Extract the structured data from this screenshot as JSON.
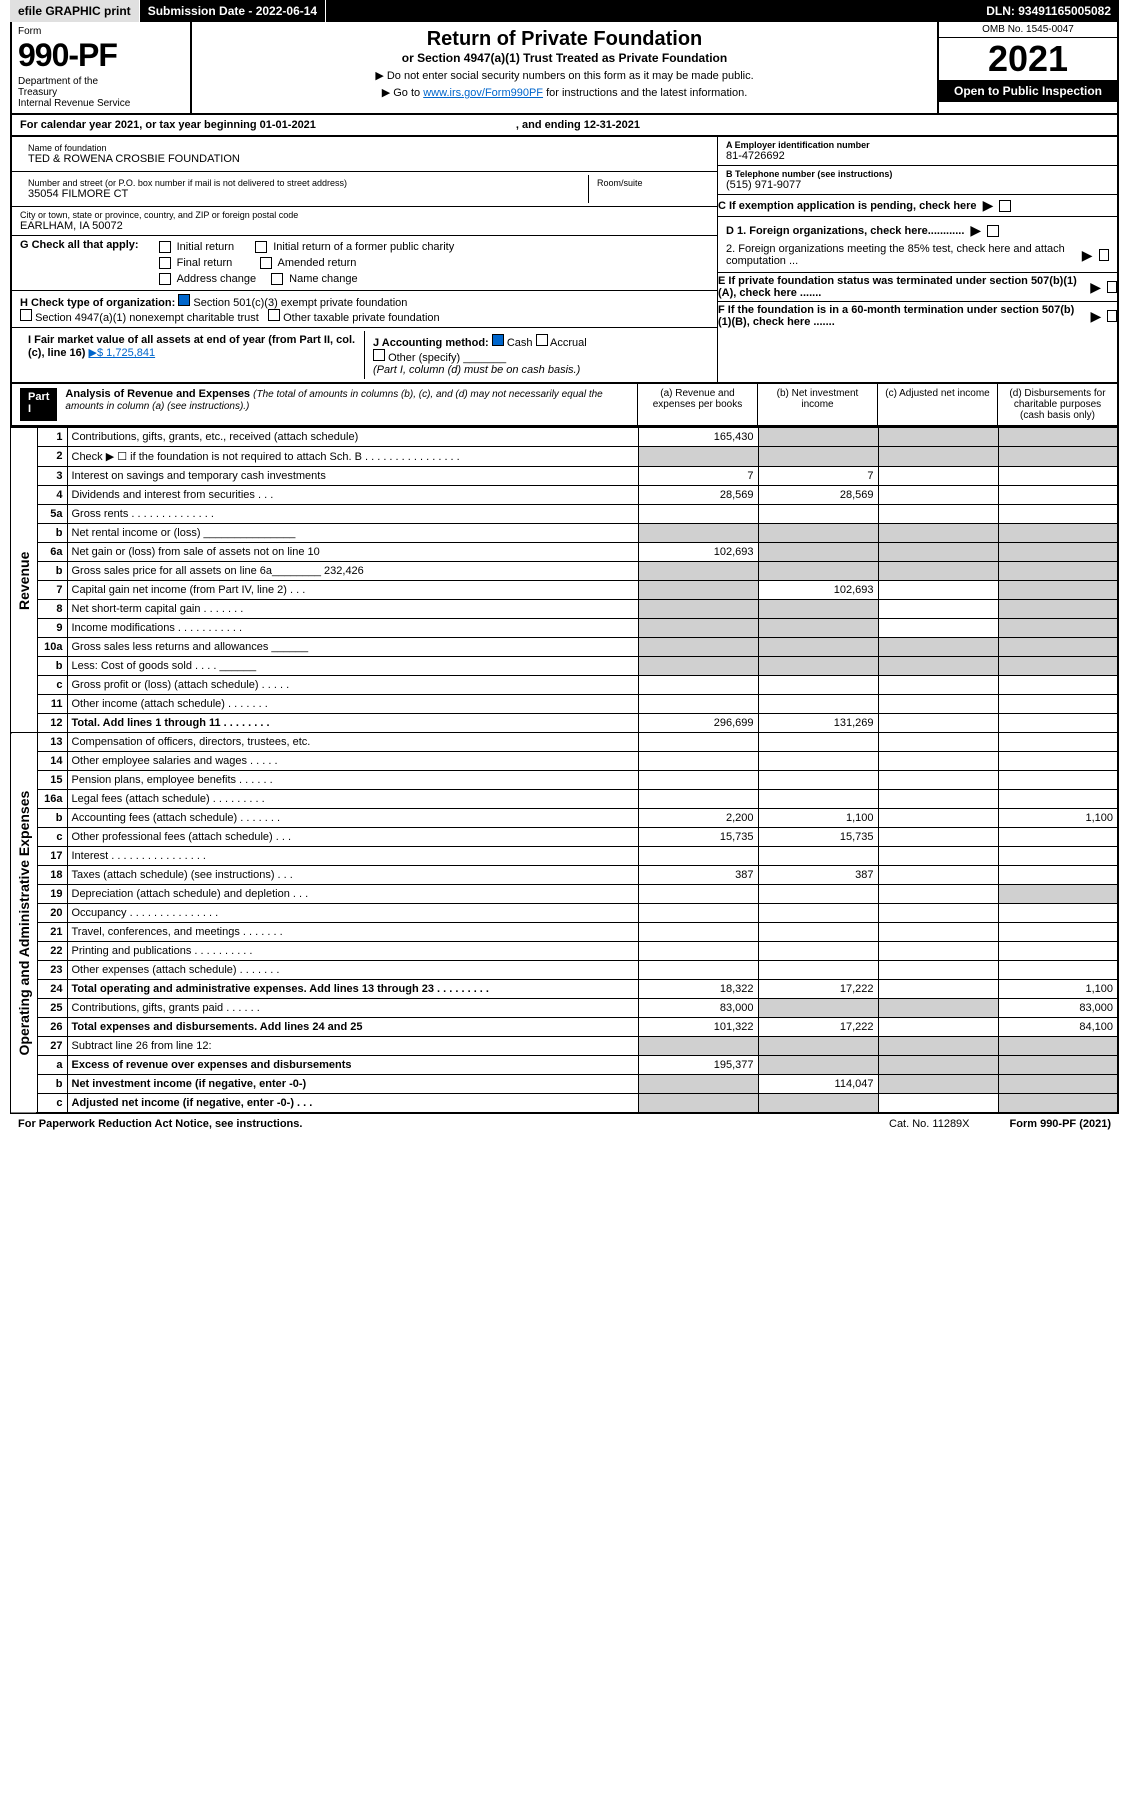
{
  "topbar": {
    "efile": "efile GRAPHIC print",
    "subdate_label": "Submission Date - 2022-06-14",
    "dln": "DLN: 93491165005082"
  },
  "header": {
    "form_label": "Form",
    "form_no": "990-PF",
    "dept": "Department of the Treasury\nInternal Revenue Service",
    "title": "Return of Private Foundation",
    "subtitle": "or Section 4947(a)(1) Trust Treated as Private Foundation",
    "note1": "▶ Do not enter social security numbers on this form as it may be made public.",
    "note2_pre": "▶ Go to ",
    "note2_link": "www.irs.gov/Form990PF",
    "note2_post": " for instructions and the latest information.",
    "omb": "OMB No. 1545-0047",
    "year": "2021",
    "open": "Open to Public Inspection"
  },
  "calendar": {
    "begin": "For calendar year 2021, or tax year beginning 01-01-2021",
    "end": ", and ending 12-31-2021"
  },
  "info": {
    "name_lbl": "Name of foundation",
    "name": "TED & ROWENA CROSBIE FOUNDATION",
    "addr_lbl": "Number and street (or P.O. box number if mail is not delivered to street address)",
    "addr": "35054 FILMORE CT",
    "room_lbl": "Room/suite",
    "city_lbl": "City or town, state or province, country, and ZIP or foreign postal code",
    "city": "EARLHAM, IA  50072",
    "ein_lbl": "A Employer identification number",
    "ein": "81-4726692",
    "phone_lbl": "B Telephone number (see instructions)",
    "phone": "(515) 971-9077",
    "c_lbl": "C If exemption application is pending, check here",
    "g_lbl": "G Check all that apply:",
    "g_opts": [
      "Initial return",
      "Initial return of a former public charity",
      "Final return",
      "Amended return",
      "Address change",
      "Name change"
    ],
    "d1": "D 1. Foreign organizations, check here............",
    "d2": "2. Foreign organizations meeting the 85% test, check here and attach computation ...",
    "h_lbl": "H Check type of organization:",
    "h1": "Section 501(c)(3) exempt private foundation",
    "h2": "Section 4947(a)(1) nonexempt charitable trust",
    "h3": "Other taxable private foundation",
    "e_lbl": "E If private foundation status was terminated under section 507(b)(1)(A), check here .......",
    "i_lbl": "I Fair market value of all assets at end of year (from Part II, col. (c), line 16)",
    "i_val": "▶$  1,725,841",
    "j_lbl": "J Accounting method:",
    "j1": "Cash",
    "j2": "Accrual",
    "j3": "Other (specify)",
    "j_note": "(Part I, column (d) must be on cash basis.)",
    "f_lbl": "F If the foundation is in a 60-month termination under section 507(b)(1)(B), check here ......."
  },
  "part1": {
    "label": "Part I",
    "title": "Analysis of Revenue and Expenses",
    "note": "(The total of amounts in columns (b), (c), and (d) may not necessarily equal the amounts in column (a) (see instructions).)",
    "col_a": "(a)    Revenue and expenses per books",
    "col_b": "(b)    Net investment income",
    "col_c": "(c)   Adjusted net income",
    "col_d": "(d)   Disbursements for charitable purposes (cash basis only)"
  },
  "vlabels": {
    "revenue": "Revenue",
    "expenses": "Operating and Administrative Expenses"
  },
  "rows": [
    {
      "n": "1",
      "d": "Contributions, gifts, grants, etc., received (attach schedule)",
      "a": "165,430"
    },
    {
      "n": "2",
      "d": "Check ▶ ☐ if the foundation is not required to attach Sch. B  .  .  .  .  .  .  .  .  .  .  .  .  .  .  .  ."
    },
    {
      "n": "3",
      "d": "Interest on savings and temporary cash investments",
      "a": "7",
      "b": "7"
    },
    {
      "n": "4",
      "d": "Dividends and interest from securities   .   .   .",
      "a": "28,569",
      "b": "28,569"
    },
    {
      "n": "5a",
      "d": "Gross rents  .  .  .  .  .  .  .  .  .  .  .  .  .  ."
    },
    {
      "n": "b",
      "d": "Net rental income or (loss)  _______________"
    },
    {
      "n": "6a",
      "d": "Net gain or (loss) from sale of assets not on line 10",
      "a": "102,693"
    },
    {
      "n": "b",
      "d": "Gross sales price for all assets on line 6a________  232,426"
    },
    {
      "n": "7",
      "d": "Capital gain net income (from Part IV, line 2)   .   .   .",
      "b": "102,693"
    },
    {
      "n": "8",
      "d": "Net short-term capital gain   .   .   .   .   .   .   ."
    },
    {
      "n": "9",
      "d": "Income modifications  .  .  .  .  .  .  .  .  .  .  ."
    },
    {
      "n": "10a",
      "d": "Gross sales less returns and allowances  ______"
    },
    {
      "n": "b",
      "d": "Less: Cost of goods sold   .   .   .   .   ______"
    },
    {
      "n": "c",
      "d": "Gross profit or (loss) (attach schedule)   .   .   .   .   ."
    },
    {
      "n": "11",
      "d": "Other income (attach schedule)   .   .   .   .   .   .   ."
    },
    {
      "n": "12",
      "d": "Total. Add lines 1 through 11   .   .   .   .   .   .   .   .",
      "a": "296,699",
      "b": "131,269",
      "bold": true
    },
    {
      "n": "13",
      "d": "Compensation of officers, directors, trustees, etc."
    },
    {
      "n": "14",
      "d": "Other employee salaries and wages   .   .   .   .   ."
    },
    {
      "n": "15",
      "d": "Pension plans, employee benefits   .   .   .   .   .   ."
    },
    {
      "n": "16a",
      "d": "Legal fees (attach schedule)  .  .  .  .  .  .  .  .  ."
    },
    {
      "n": "b",
      "d": "Accounting fees (attach schedule)  .  .  .  .  .  .  .",
      "a": "2,200",
      "b": "1,100",
      "dd": "1,100"
    },
    {
      "n": "c",
      "d": "Other professional fees (attach schedule)   .   .   .",
      "a": "15,735",
      "b": "15,735"
    },
    {
      "n": "17",
      "d": "Interest  .  .  .  .  .  .  .  .  .  .  .  .  .  .  .  ."
    },
    {
      "n": "18",
      "d": "Taxes (attach schedule) (see instructions)   .   .   .",
      "a": "387",
      "b": "387"
    },
    {
      "n": "19",
      "d": "Depreciation (attach schedule) and depletion   .   .   ."
    },
    {
      "n": "20",
      "d": "Occupancy  .  .  .  .  .  .  .  .  .  .  .  .  .  .  ."
    },
    {
      "n": "21",
      "d": "Travel, conferences, and meetings  .  .  .  .  .  .  ."
    },
    {
      "n": "22",
      "d": "Printing and publications  .  .  .  .  .  .  .  .  .  ."
    },
    {
      "n": "23",
      "d": "Other expenses (attach schedule)  .  .  .  .  .  .  ."
    },
    {
      "n": "24",
      "d": "Total operating and administrative expenses. Add lines 13 through 23   .   .   .   .   .   .   .   .   .",
      "a": "18,322",
      "b": "17,222",
      "dd": "1,100",
      "bold": true
    },
    {
      "n": "25",
      "d": "Contributions, gifts, grants paid   .   .   .   .   .   .",
      "a": "83,000",
      "dd": "83,000"
    },
    {
      "n": "26",
      "d": "Total expenses and disbursements. Add lines 24 and 25",
      "a": "101,322",
      "b": "17,222",
      "dd": "84,100",
      "bold": true
    },
    {
      "n": "27",
      "d": "Subtract line 26 from line 12:"
    },
    {
      "n": "a",
      "d": "Excess of revenue over expenses and disbursements",
      "a": "195,377",
      "bold": true
    },
    {
      "n": "b",
      "d": "Net investment income (if negative, enter -0-)",
      "b": "114,047",
      "bold": true
    },
    {
      "n": "c",
      "d": "Adjusted net income (if negative, enter -0-)   .   .   .",
      "bold": true
    }
  ],
  "footer": {
    "pra": "For Paperwork Reduction Act Notice, see instructions.",
    "cat": "Cat. No. 11289X",
    "form": "Form 990-PF (2021)"
  },
  "shading": {
    "row1": {
      "b": true,
      "c": true,
      "d": true
    },
    "row2": {
      "a": true,
      "b": true,
      "c": true,
      "d": true
    },
    "row5b": {
      "a": true,
      "b": true,
      "c": true,
      "d": true
    },
    "row6a": {
      "b": true,
      "c": true,
      "d": true
    },
    "row6b": {
      "a": true,
      "b": true,
      "c": true,
      "d": true
    },
    "row7": {
      "a": true,
      "d": true
    },
    "row8": {
      "a": true,
      "b": true,
      "d": true
    },
    "row9": {
      "a": true,
      "b": true,
      "d": true
    },
    "row10a": {
      "a": true,
      "b": true,
      "c": true,
      "d": true
    },
    "row10b": {
      "a": true,
      "b": true,
      "c": true,
      "d": true
    },
    "row19": {
      "d": true
    },
    "row25": {
      "b": true,
      "c": true
    },
    "row27": {
      "a": true,
      "b": true,
      "c": true,
      "d": true
    },
    "row27a": {
      "b": true,
      "c": true,
      "d": true
    },
    "row27b": {
      "a": true,
      "c": true,
      "d": true
    },
    "row27c": {
      "a": true,
      "b": true,
      "d": true
    }
  }
}
